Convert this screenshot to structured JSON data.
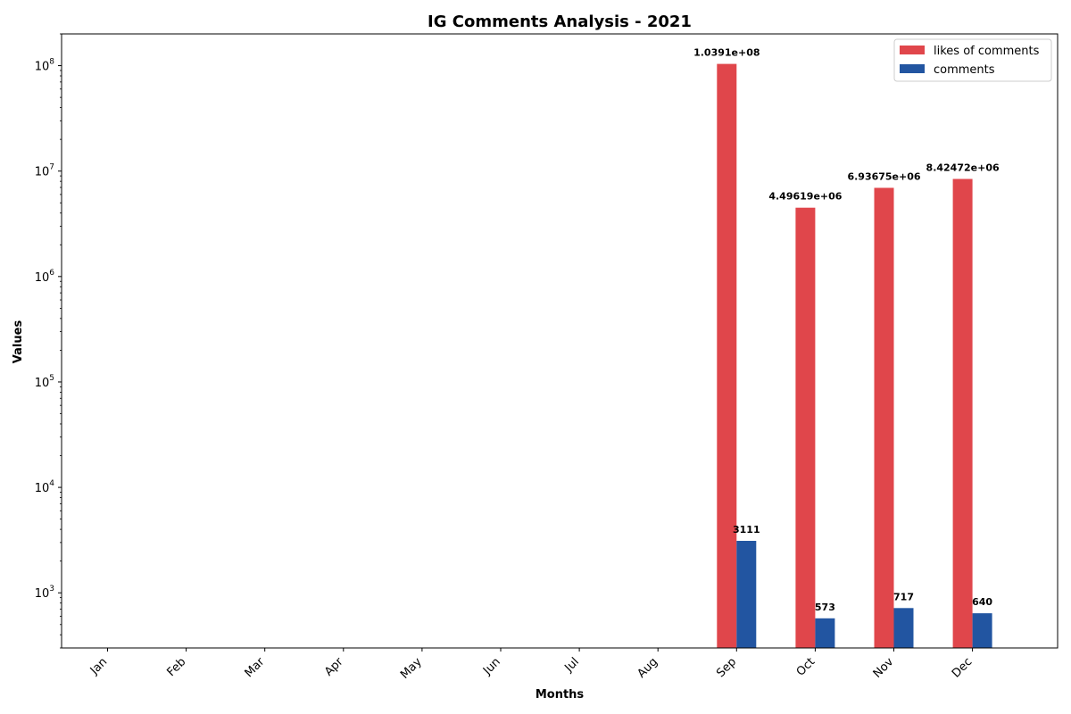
{
  "chart_data": {
    "type": "bar",
    "title": "IG Comments Analysis - 2021",
    "xlabel": "Months",
    "ylabel": "Values",
    "yscale": "log",
    "ylim": [
      300,
      200000000
    ],
    "grid": false,
    "legend_position": "top-right",
    "categories": [
      "Jan",
      "Feb",
      "Mar",
      "Apr",
      "May",
      "Jun",
      "Jul",
      "Aug",
      "Sep",
      "Oct",
      "Nov",
      "Dec"
    ],
    "series": [
      {
        "name": "likes of comments",
        "color": "#e0464b",
        "values": [
          null,
          null,
          null,
          null,
          null,
          null,
          null,
          null,
          103910000,
          4496190,
          6936750,
          8424720
        ],
        "labels": [
          "",
          "",
          "",
          "",
          "",
          "",
          "",
          "",
          "1.0391e+08",
          "4.49619e+06",
          "6.93675e+06",
          "8.42472e+06"
        ]
      },
      {
        "name": "comments",
        "color": "#2255a1",
        "values": [
          null,
          null,
          null,
          null,
          null,
          null,
          null,
          null,
          3111,
          573,
          717,
          640
        ],
        "labels": [
          "",
          "",
          "",
          "",
          "",
          "",
          "",
          "",
          "3111",
          "573",
          "717",
          "640"
        ]
      }
    ],
    "yticks": [
      {
        "value": 1000,
        "mantissa": "10",
        "exponent": "3"
      },
      {
        "value": 10000,
        "mantissa": "10",
        "exponent": "4"
      },
      {
        "value": 100000,
        "mantissa": "10",
        "exponent": "5"
      },
      {
        "value": 1000000,
        "mantissa": "10",
        "exponent": "6"
      },
      {
        "value": 10000000,
        "mantissa": "10",
        "exponent": "7"
      },
      {
        "value": 100000000,
        "mantissa": "10",
        "exponent": "8"
      }
    ]
  }
}
